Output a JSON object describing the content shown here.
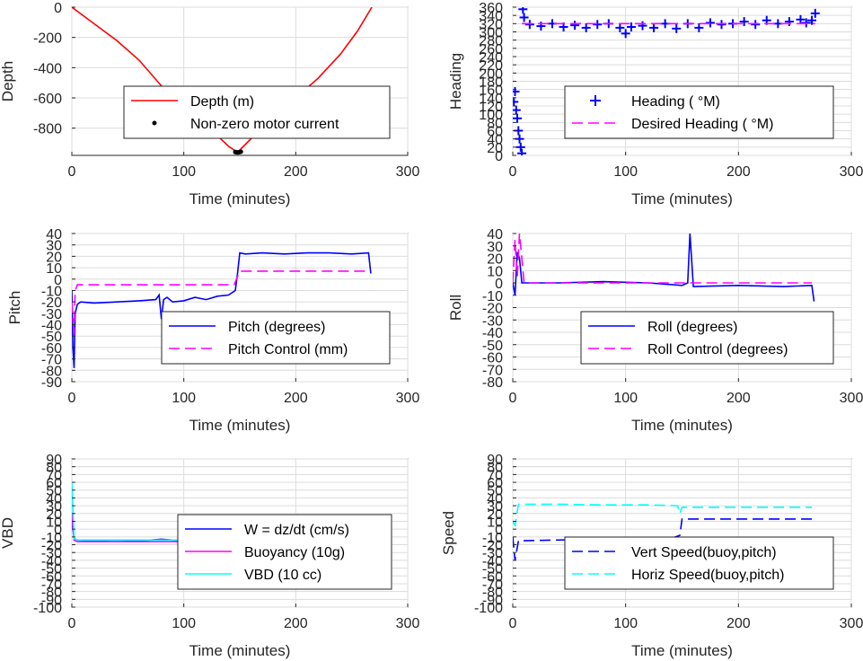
{
  "chart_data": [
    {
      "type": "line",
      "ylabel": "Depth",
      "xlabel": "Time (minutes)",
      "xlim": [
        0,
        300
      ],
      "ylim": [
        -980,
        0
      ],
      "xticks": [
        0,
        100,
        200,
        300
      ],
      "yticks": [
        0,
        -200,
        -400,
        -600,
        -800
      ],
      "grid": true,
      "legend_position": "center-right",
      "series": [
        {
          "name": "Depth (m)",
          "style": "line",
          "color": "#ff0000",
          "x": [
            0,
            20,
            40,
            60,
            80,
            100,
            120,
            140,
            148,
            160,
            180,
            200,
            220,
            240,
            255,
            268
          ],
          "y": [
            0,
            -110,
            -220,
            -350,
            -520,
            -650,
            -780,
            -920,
            -960,
            -870,
            -720,
            -600,
            -470,
            -310,
            -160,
            0
          ]
        },
        {
          "name": "Non-zero motor current",
          "style": "markers",
          "marker": "dot",
          "color": "#000000",
          "x": [
            146,
            147,
            148,
            149,
            150,
            151
          ],
          "y": [
            -958,
            -960,
            -961,
            -960,
            -958,
            -956
          ]
        }
      ]
    },
    {
      "type": "scatter",
      "ylabel": "Heading",
      "xlabel": "Time (minutes)",
      "xlim": [
        0,
        300
      ],
      "ylim": [
        0,
        360
      ],
      "xticks": [
        0,
        100,
        200,
        300
      ],
      "yticks": [
        0,
        20,
        40,
        60,
        80,
        100,
        120,
        140,
        160,
        180,
        200,
        220,
        240,
        260,
        280,
        300,
        320,
        340,
        360
      ],
      "grid": true,
      "legend_position": "bottom-right",
      "series": [
        {
          "name": "Heading ( °M)",
          "style": "markers",
          "marker": "plus",
          "color": "#0000ff",
          "x": [
            1,
            2,
            3,
            4,
            5,
            6,
            7,
            8,
            9,
            10,
            15,
            25,
            35,
            45,
            55,
            65,
            75,
            85,
            95,
            100,
            105,
            115,
            125,
            135,
            145,
            155,
            165,
            175,
            185,
            195,
            205,
            215,
            225,
            235,
            245,
            255,
            260,
            265,
            268
          ],
          "y": [
            130,
            155,
            110,
            90,
            60,
            40,
            20,
            5,
            355,
            335,
            318,
            314,
            320,
            312,
            316,
            310,
            318,
            320,
            310,
            296,
            312,
            315,
            310,
            320,
            308,
            320,
            310,
            322,
            318,
            320,
            325,
            318,
            328,
            320,
            325,
            330,
            322,
            328,
            345
          ]
        },
        {
          "name": "Desired Heading (  °M)",
          "style": "dashed",
          "color": "#ff00ff",
          "x": [
            8,
            268
          ],
          "y": [
            320,
            320
          ]
        }
      ]
    },
    {
      "type": "line",
      "ylabel": "Pitch",
      "xlabel": "Time (minutes)",
      "xlim": [
        0,
        300
      ],
      "ylim": [
        -90,
        40
      ],
      "xticks": [
        0,
        100,
        200,
        300
      ],
      "yticks": [
        40,
        30,
        20,
        10,
        0,
        -10,
        -20,
        -30,
        -40,
        -50,
        -60,
        -70,
        -80,
        -90
      ],
      "grid": true,
      "legend_position": "bottom-right",
      "series": [
        {
          "name": "Pitch (degrees)",
          "style": "line",
          "color": "#0000ff",
          "x": [
            0,
            1,
            2,
            3,
            5,
            8,
            20,
            40,
            60,
            75,
            78,
            80,
            82,
            85,
            90,
            100,
            110,
            120,
            130,
            140,
            146,
            148,
            150,
            155,
            170,
            190,
            210,
            230,
            250,
            265,
            267
          ],
          "y": [
            -10,
            -60,
            -78,
            -30,
            -22,
            -20,
            -21,
            -20,
            -19,
            -18,
            -14,
            -35,
            -18,
            -16,
            -20,
            -19,
            -16,
            -18,
            -15,
            -14,
            -10,
            5,
            23,
            22,
            23,
            22,
            23,
            23,
            22,
            23,
            5
          ]
        },
        {
          "name": "Pitch Control (mm)",
          "style": "dashed",
          "color": "#ff00ff",
          "x": [
            0,
            2,
            3,
            5,
            145,
            147,
            150,
            265
          ],
          "y": [
            -20,
            -50,
            -10,
            -5,
            -5,
            0,
            7,
            7
          ]
        }
      ]
    },
    {
      "type": "line",
      "ylabel": "Roll",
      "xlabel": "Time (minutes)",
      "xlim": [
        0,
        300
      ],
      "ylim": [
        -80,
        40
      ],
      "xticks": [
        0,
        100,
        200,
        300
      ],
      "yticks": [
        40,
        30,
        20,
        10,
        0,
        -10,
        -20,
        -30,
        -40,
        -50,
        -60,
        -70,
        -80
      ],
      "grid": true,
      "legend_position": "bottom-right",
      "series": [
        {
          "name": "Roll (degrees)",
          "style": "line",
          "color": "#0000ff",
          "x": [
            0,
            2,
            4,
            6,
            8,
            10,
            15,
            40,
            80,
            120,
            150,
            155,
            157,
            160,
            200,
            240,
            265,
            267
          ],
          "y": [
            0,
            -10,
            25,
            20,
            0,
            0,
            0,
            0,
            1,
            0,
            -2,
            0,
            40,
            -3,
            -2,
            -3,
            -2,
            -15
          ]
        },
        {
          "name": "Roll Control (degrees)",
          "style": "dashed",
          "color": "#ff00ff",
          "x": [
            0,
            2,
            4,
            6,
            8,
            10,
            15,
            265
          ],
          "y": [
            0,
            35,
            5,
            40,
            20,
            0,
            0,
            0
          ]
        }
      ]
    },
    {
      "type": "line",
      "ylabel": "VBD",
      "xlabel": "Time (minutes)",
      "xlim": [
        0,
        300
      ],
      "ylim": [
        -100,
        90
      ],
      "xticks": [
        0,
        100,
        200,
        300
      ],
      "yticks": [
        90,
        80,
        70,
        60,
        50,
        40,
        30,
        20,
        10,
        0,
        -10,
        -20,
        -30,
        -40,
        -50,
        -60,
        -70,
        -80,
        -90,
        -100
      ],
      "grid": true,
      "legend_position": "bottom-right",
      "series": [
        {
          "name": "W = dz/dt (cm/s)",
          "style": "line",
          "color": "#0000ff",
          "x": [
            0,
            2,
            5,
            20,
            40,
            60,
            80,
            100,
            120,
            140,
            146,
            149,
            155,
            180,
            210,
            240,
            265,
            267
          ],
          "y": [
            10,
            -12,
            -14,
            -15,
            -14,
            -15,
            -13,
            -15,
            -14,
            -13,
            -14,
            15,
            16,
            16,
            17,
            16,
            16,
            5
          ]
        },
        {
          "name": "Buoyancy (10g)",
          "style": "line",
          "color": "#ff00ff",
          "x": [
            0,
            2,
            5,
            145,
            149,
            265
          ],
          "y": [
            20,
            -14,
            -16,
            -16,
            17,
            17
          ]
        },
        {
          "name": "VBD (10 cc)",
          "style": "line",
          "color": "#00ffff",
          "x": [
            0,
            2,
            5,
            145,
            149,
            265
          ],
          "y": [
            60,
            -12,
            -14,
            -14,
            18,
            18
          ]
        }
      ]
    },
    {
      "type": "line",
      "ylabel": "Speed",
      "xlabel": "Time (minutes)",
      "xlim": [
        0,
        300
      ],
      "ylim": [
        -100,
        90
      ],
      "xticks": [
        0,
        100,
        200,
        300
      ],
      "yticks": [
        90,
        80,
        70,
        60,
        50,
        40,
        30,
        20,
        10,
        0,
        -10,
        -20,
        -30,
        -40,
        -50,
        -60,
        -70,
        -80,
        -90,
        -100
      ],
      "grid": true,
      "legend_position": "bottom-right",
      "series": [
        {
          "name": "Vert Speed(buoy,pitch)",
          "style": "dashed",
          "color": "#0000ff",
          "x": [
            0,
            2,
            5,
            40,
            80,
            82,
            84,
            120,
            140,
            148,
            150,
            180,
            220,
            265
          ],
          "y": [
            -10,
            -40,
            -15,
            -14,
            -13,
            -25,
            -13,
            -12,
            -12,
            -8,
            13,
            13,
            13,
            13
          ]
        },
        {
          "name": "Horiz Speed(buoy,pitch)",
          "style": "dashed",
          "color": "#00ffff",
          "x": [
            0,
            2,
            5,
            40,
            80,
            120,
            146,
            148,
            150,
            180,
            220,
            265
          ],
          "y": [
            10,
            5,
            32,
            32,
            31,
            31,
            30,
            20,
            28,
            28,
            28,
            28
          ]
        }
      ]
    }
  ]
}
